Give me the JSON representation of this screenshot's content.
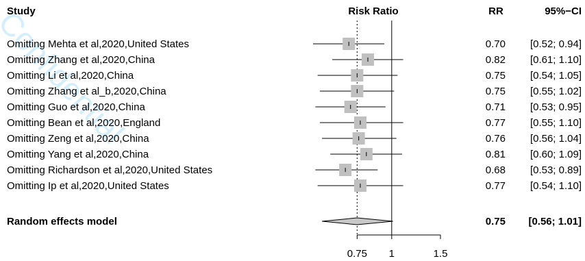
{
  "chart_data": {
    "type": "forest",
    "headers": {
      "study": "Study",
      "plot": "Risk Ratio",
      "rr": "RR",
      "ci": "95%−CI"
    },
    "studies": [
      {
        "label": "Omitting Mehta et al,2020,United States",
        "rr": 0.7,
        "lower": 0.52,
        "upper": 0.94,
        "rr_text": "0.70",
        "ci_text": "[0.52; 0.94]"
      },
      {
        "label": "Omitting Zhang et al,2020,China",
        "rr": 0.82,
        "lower": 0.61,
        "upper": 1.1,
        "rr_text": "0.82",
        "ci_text": "[0.61; 1.10]"
      },
      {
        "label": "Omitting Li et al,2020,China",
        "rr": 0.75,
        "lower": 0.54,
        "upper": 1.05,
        "rr_text": "0.75",
        "ci_text": "[0.54; 1.05]"
      },
      {
        "label": "Omitting Zhang et al_b,2020,China",
        "rr": 0.75,
        "lower": 0.55,
        "upper": 1.02,
        "rr_text": "0.75",
        "ci_text": "[0.55; 1.02]"
      },
      {
        "label": "Omitting Guo et al,2020,China",
        "rr": 0.71,
        "lower": 0.53,
        "upper": 0.95,
        "rr_text": "0.71",
        "ci_text": "[0.53; 0.95]"
      },
      {
        "label": "Omitting Bean et al,2020,England",
        "rr": 0.77,
        "lower": 0.55,
        "upper": 1.1,
        "rr_text": "0.77",
        "ci_text": "[0.55; 1.10]"
      },
      {
        "label": "Omitting Zeng et al,2020,China",
        "rr": 0.76,
        "lower": 0.56,
        "upper": 1.04,
        "rr_text": "0.76",
        "ci_text": "[0.56; 1.04]"
      },
      {
        "label": "Omitting Yang et al,2020,China",
        "rr": 0.81,
        "lower": 0.6,
        "upper": 1.09,
        "rr_text": "0.81",
        "ci_text": "[0.60; 1.09]"
      },
      {
        "label": "Omitting Richardson et al,2020,United States",
        "rr": 0.68,
        "lower": 0.53,
        "upper": 0.89,
        "rr_text": "0.68",
        "ci_text": "[0.53; 0.89]"
      },
      {
        "label": "Omitting Ip et al,2020,United States",
        "rr": 0.77,
        "lower": 0.54,
        "upper": 1.1,
        "rr_text": "0.77",
        "ci_text": "[0.54; 1.10]"
      }
    ],
    "pooled": {
      "label": "Random effects model",
      "rr": 0.75,
      "lower": 0.56,
      "upper": 1.01,
      "rr_text": "0.75",
      "ci_text": "[0.56; 1.01]"
    },
    "x_ticks": [
      {
        "value": 0.75,
        "label": "0.75"
      },
      {
        "value": 1,
        "label": "1"
      },
      {
        "value": 1.5,
        "label": "1.5"
      }
    ],
    "xlim": [
      0.4,
      1.5
    ],
    "x_scale": "log",
    "null_line": 1,
    "pooled_line": 0.75,
    "colors": {
      "box": "#c0c0c0",
      "diamond": "#c8c8c8",
      "line": "#000000"
    }
  },
  "watermark": {
    "text": "Confidential",
    "color": "#8fd6f5"
  }
}
